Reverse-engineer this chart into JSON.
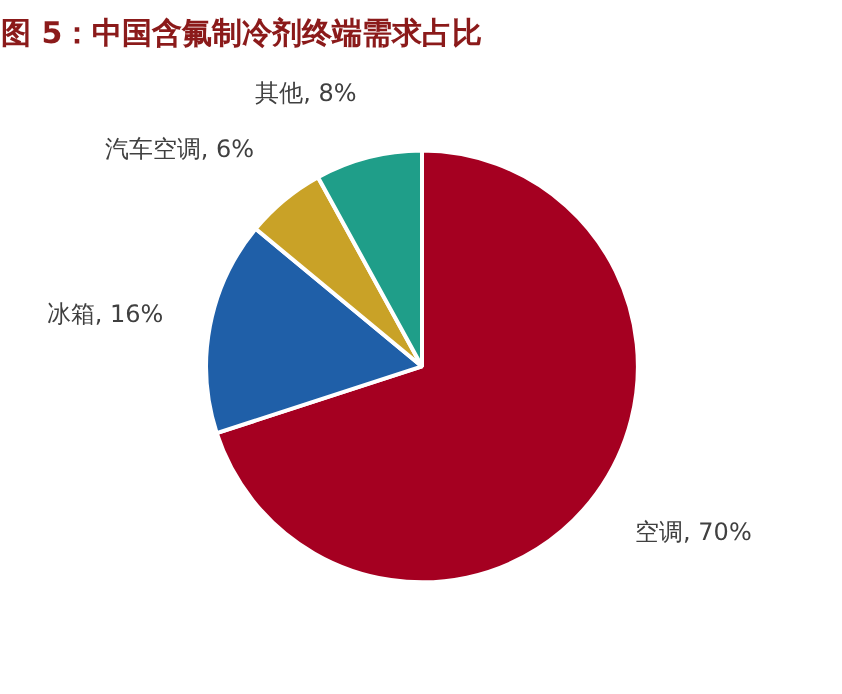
{
  "chart_data": {
    "type": "pie",
    "title": "图 5：中国含氟制冷剂终端需求占比",
    "categories": [
      "空调",
      "冰箱",
      "汽车空调",
      "其他"
    ],
    "values": [
      70,
      16,
      6,
      8
    ],
    "value_labels": [
      "70%",
      "16%",
      "6%",
      "8%"
    ],
    "colors": [
      "#a50021",
      "#1f5fa8",
      "#c9a227",
      "#1f9e89"
    ]
  }
}
